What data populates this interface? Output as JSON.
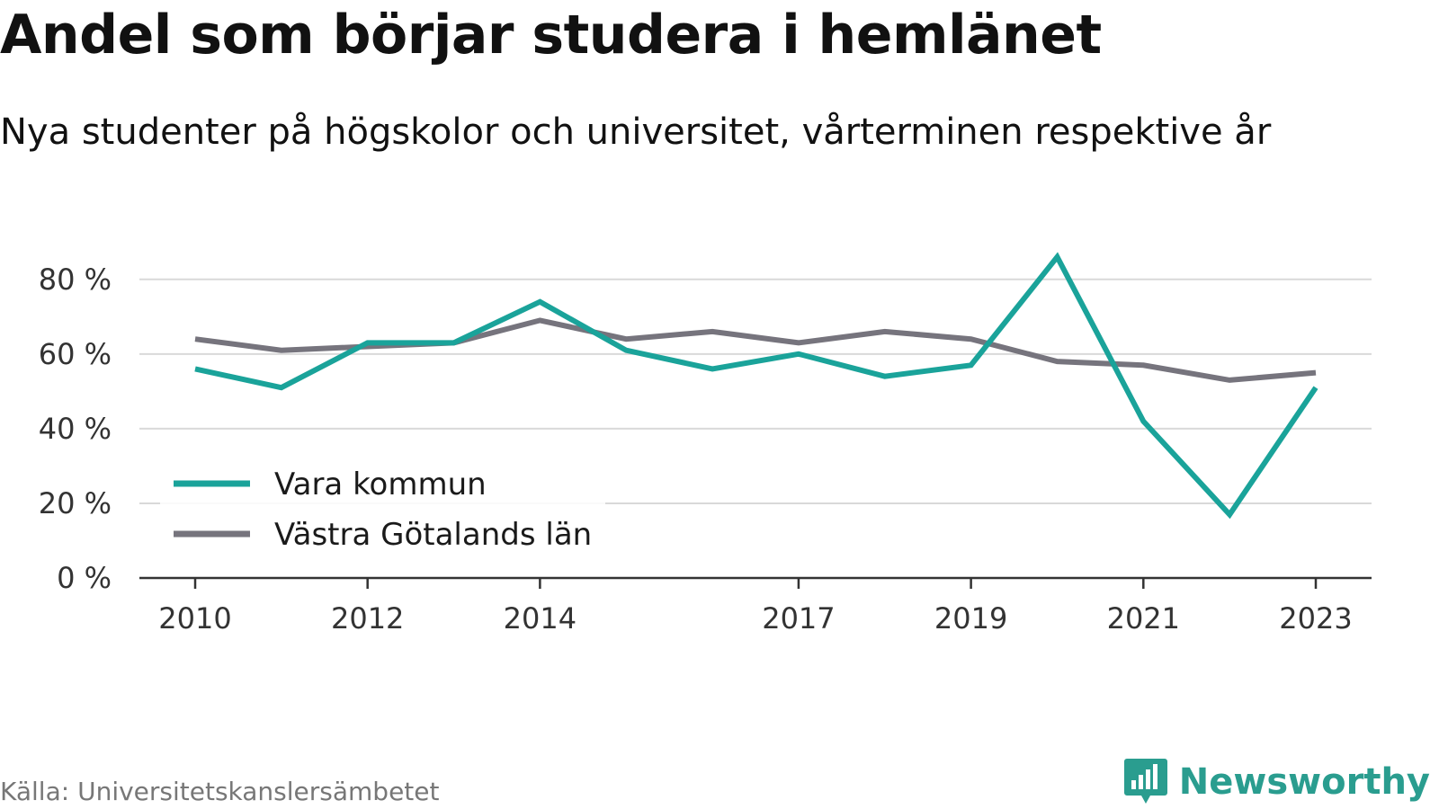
{
  "title": "Andel som börjar studera i hemlänet",
  "subtitle": "Nya studenter på högskolor och universitet, vårterminen respektive år",
  "source": "Källa: Universitetskanslersämbetet",
  "brand": {
    "name": "Newsworthy",
    "icon": "newsworthy-logo-icon",
    "color": "#2a9d8f"
  },
  "chart_data": {
    "type": "line",
    "title": "Andel som börjar studera i hemlänet",
    "subtitle": "Nya studenter på högskolor och universitet, vårterminen respektive år",
    "x": [
      2010,
      2011,
      2012,
      2013,
      2014,
      2015,
      2016,
      2017,
      2018,
      2019,
      2020,
      2021,
      2022,
      2023
    ],
    "x_tick_labels": [
      "2010",
      "2012",
      "2014",
      "2017",
      "2019",
      "2021",
      "2023"
    ],
    "y_ticks": [
      0,
      20,
      40,
      60,
      80
    ],
    "y_tick_labels": [
      "0 %",
      "20 %",
      "40 %",
      "60 %",
      "80 %"
    ],
    "ylim": [
      0,
      85
    ],
    "grid": true,
    "legend_position": "bottom-left",
    "series": [
      {
        "name": "Vara kommun",
        "color": "#1aa39a",
        "values": [
          56,
          51,
          63,
          63,
          74,
          61,
          56,
          60,
          54,
          57,
          86,
          42,
          17,
          51
        ]
      },
      {
        "name": "Västra Götalands län",
        "color": "#76747d",
        "values": [
          64,
          61,
          62,
          63,
          69,
          64,
          66,
          63,
          66,
          64,
          58,
          57,
          53,
          55
        ]
      }
    ]
  }
}
